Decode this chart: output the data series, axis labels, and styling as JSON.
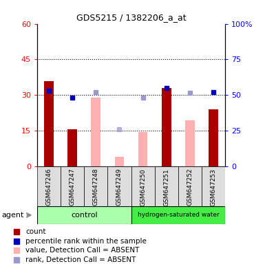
{
  "title": "GDS5215 / 1382206_a_at",
  "samples": [
    "GSM647246",
    "GSM647247",
    "GSM647248",
    "GSM647249",
    "GSM647250",
    "GSM647251",
    "GSM647252",
    "GSM647253"
  ],
  "n_control": 4,
  "n_hydrogen": 4,
  "count_values": [
    36.0,
    15.5,
    null,
    null,
    null,
    33.0,
    null,
    24.0
  ],
  "rank_pct_values": [
    53.0,
    48.0,
    null,
    null,
    null,
    55.0,
    null,
    52.0
  ],
  "absent_bar_values": [
    null,
    null,
    29.0,
    4.0,
    14.5,
    null,
    19.5,
    null
  ],
  "absent_rank_pct": [
    null,
    null,
    52.0,
    null,
    48.0,
    null,
    51.5,
    null
  ],
  "absent_rank_light_pct": [
    null,
    null,
    null,
    26.0,
    null,
    null,
    null,
    null
  ],
  "ylim_left": [
    0,
    60
  ],
  "ylim_right": [
    0,
    100
  ],
  "yticks_left": [
    0,
    15,
    30,
    45,
    60
  ],
  "yticks_right": [
    0,
    25,
    50,
    75,
    100
  ],
  "ytick_labels_left": [
    "0",
    "15",
    "30",
    "45",
    "60"
  ],
  "ytick_labels_right": [
    "0",
    "25",
    "50",
    "75",
    "100%"
  ],
  "dark_red": "#AA0000",
  "pink_bar": "#FFB0B0",
  "dark_blue": "#0000BB",
  "light_blue_sq": "#9999CC",
  "control_color": "#AAFFAA",
  "hydrogen_color": "#44EE44",
  "bar_width": 0.4,
  "agent_label": "agent",
  "legend_labels": [
    "count",
    "percentile rank within the sample",
    "value, Detection Call = ABSENT",
    "rank, Detection Call = ABSENT"
  ]
}
